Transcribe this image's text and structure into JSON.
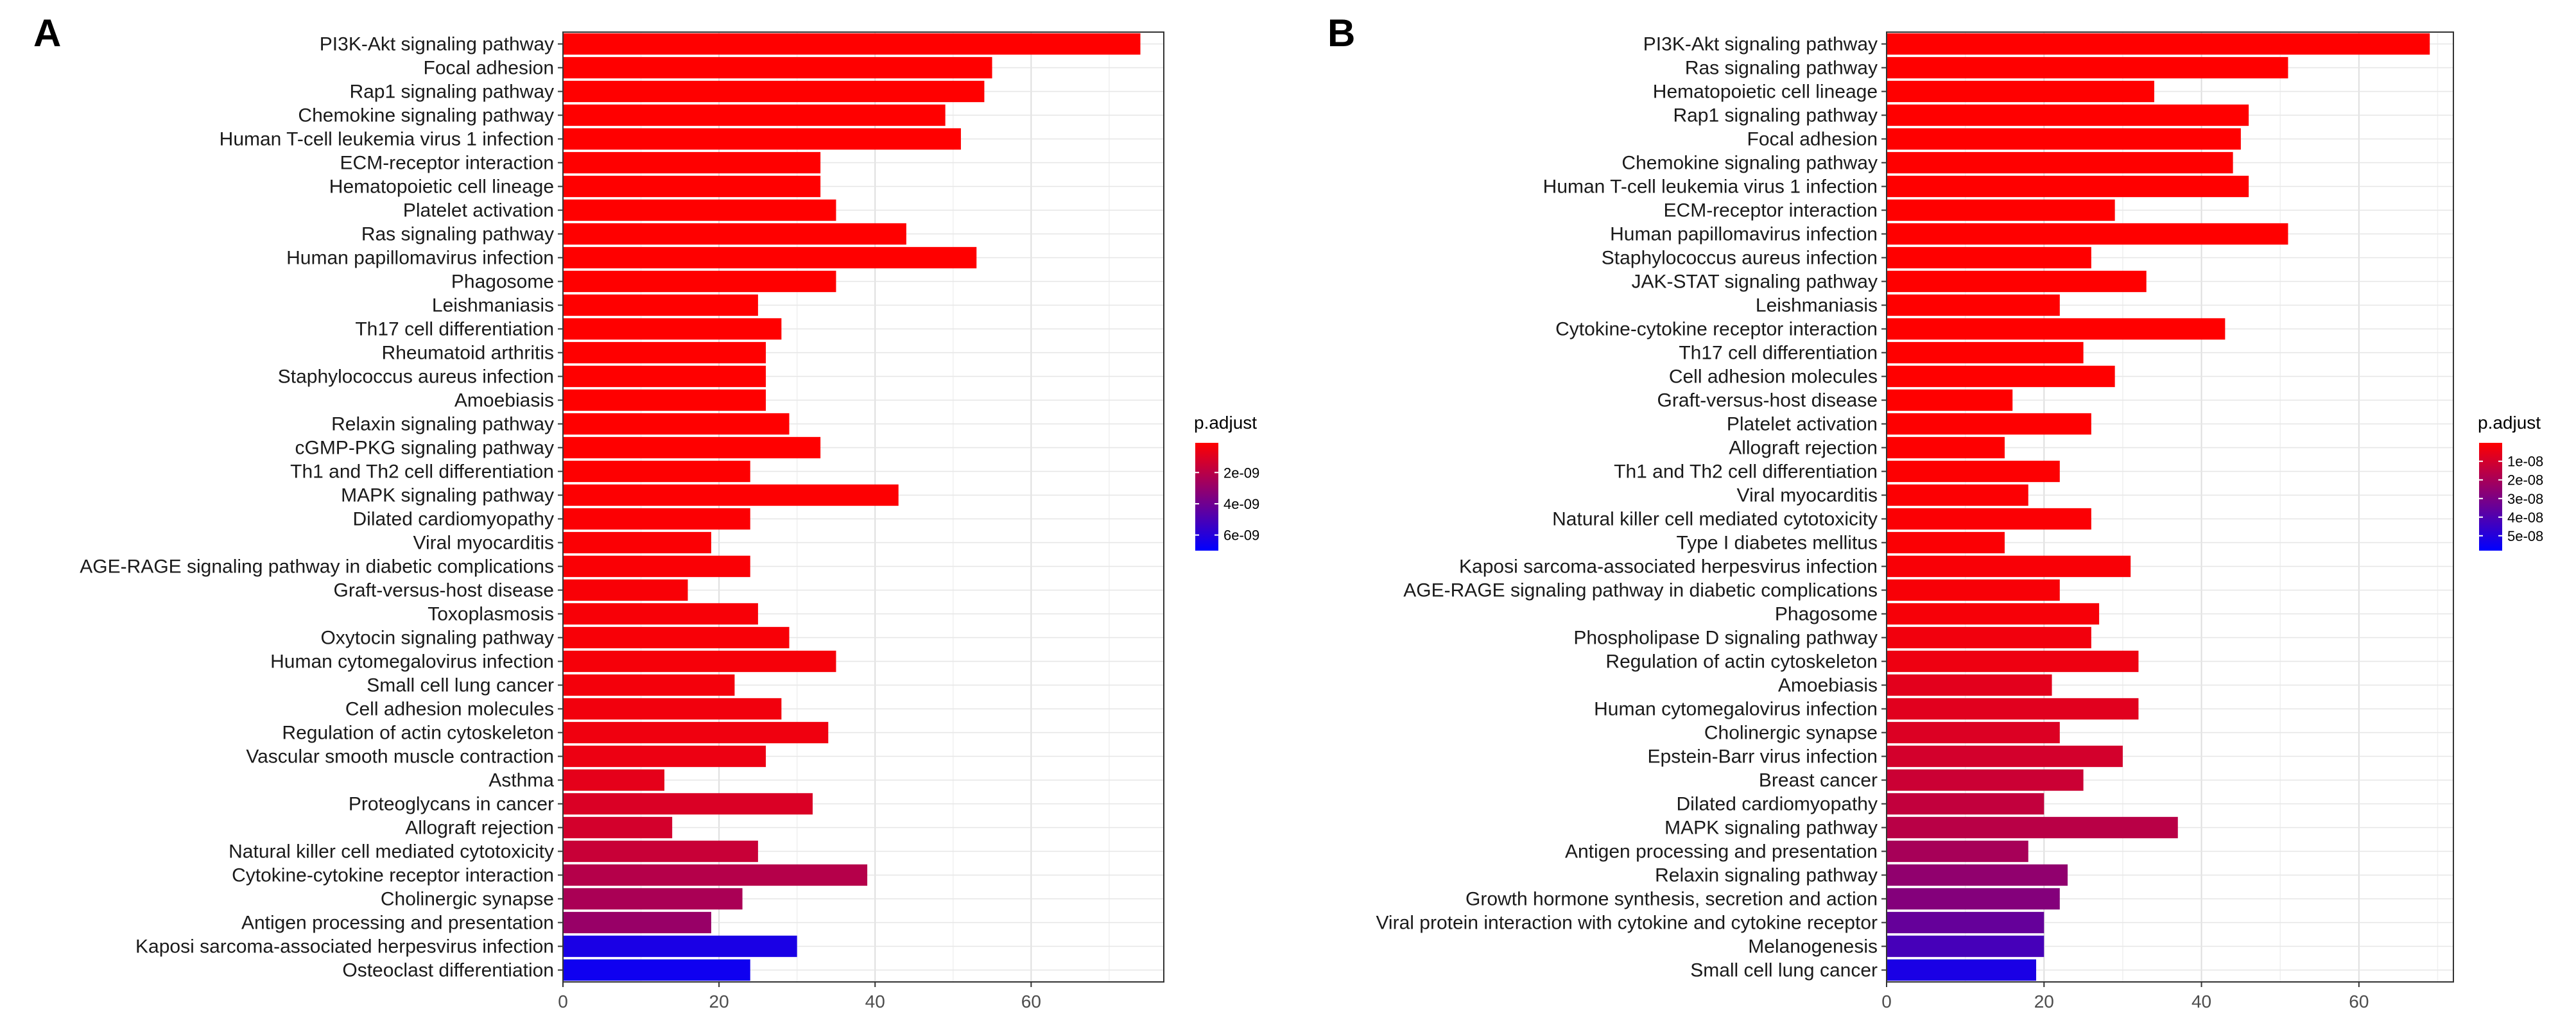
{
  "chart_data": [
    {
      "type": "bar",
      "panel_label": "A",
      "orientation": "horizontal",
      "xlim": [
        0,
        77
      ],
      "x_ticks": [
        "0",
        "20",
        "40",
        "60"
      ],
      "x_tick_values": [
        0,
        20,
        40,
        60
      ],
      "color_by": "p.adjust",
      "legend": {
        "title": "p.adjust",
        "position": "right",
        "ticks": [
          "2e-09",
          "4e-09",
          "6e-09"
        ],
        "tick_values": [
          2e-09,
          4e-09,
          6e-09
        ],
        "range": [
          1e-10,
          7e-09
        ],
        "low_color": "#ff0000",
        "high_color": "#0000ff"
      },
      "categories": [
        "PI3K-Akt signaling pathway",
        "Focal adhesion",
        "Rap1 signaling pathway",
        "Chemokine signaling pathway",
        "Human T-cell leukemia virus 1 infection",
        "ECM-receptor interaction",
        "Hematopoietic cell lineage",
        "Platelet activation",
        "Ras signaling pathway",
        "Human papillomavirus infection",
        "Phagosome",
        "Leishmaniasis",
        "Th17 cell differentiation",
        "Rheumatoid arthritis",
        "Staphylococcus aureus infection",
        "Amoebiasis",
        "Relaxin signaling pathway",
        "cGMP-PKG signaling pathway",
        "Th1 and Th2 cell differentiation",
        "MAPK signaling pathway",
        "Dilated cardiomyopathy",
        "Viral myocarditis",
        "AGE-RAGE signaling pathway in diabetic complications",
        "Graft-versus-host disease",
        "Toxoplasmosis",
        "Oxytocin signaling pathway",
        "Human cytomegalovirus infection",
        "Small cell lung cancer",
        "Cell adhesion molecules",
        "Regulation of actin cytoskeleton",
        "Vascular smooth muscle contraction",
        "Asthma",
        "Proteoglycans in cancer",
        "Allograft rejection",
        "Natural killer cell mediated cytotoxicity",
        "Cytokine-cytokine receptor interaction",
        "Cholinergic synapse",
        "Antigen processing and presentation",
        "Kaposi sarcoma-associated herpesvirus infection",
        "Osteoclast differentiation"
      ],
      "values": [
        74,
        55,
        54,
        49,
        51,
        33,
        33,
        35,
        44,
        53,
        35,
        25,
        28,
        26,
        26,
        26,
        29,
        33,
        24,
        43,
        24,
        19,
        24,
        16,
        25,
        29,
        35,
        22,
        28,
        34,
        26,
        13,
        32,
        14,
        25,
        39,
        23,
        19,
        30,
        24
      ],
      "p_adjust": [
        3e-14,
        1e-12,
        2e-12,
        3e-12,
        4e-12,
        5e-12,
        6e-12,
        8e-12,
        1e-11,
        1.2e-11,
        2e-11,
        3e-11,
        4e-11,
        5e-11,
        6e-11,
        7e-11,
        8e-11,
        1e-10,
        1.2e-10,
        1.5e-10,
        1.8e-10,
        2e-10,
        2.3e-10,
        2.5e-10,
        2.8e-10,
        3e-10,
        3.5e-10,
        4e-10,
        4.5e-10,
        5e-10,
        6e-10,
        8e-10,
        1.1e-09,
        1.3e-09,
        1.6e-09,
        2.1e-09,
        2.4e-09,
        2.9e-09,
        6.3e-09,
        6.6e-09
      ]
    },
    {
      "type": "bar",
      "panel_label": "B",
      "orientation": "horizontal",
      "xlim": [
        0,
        72
      ],
      "x_ticks": [
        "0",
        "20",
        "40",
        "60"
      ],
      "x_tick_values": [
        0,
        20,
        40,
        60
      ],
      "color_by": "p.adjust",
      "legend": {
        "title": "p.adjust",
        "position": "right",
        "ticks": [
          "1e-08",
          "2e-08",
          "3e-08",
          "4e-08",
          "5e-08"
        ],
        "tick_values": [
          1e-08,
          2e-08,
          3e-08,
          4e-08,
          5e-08
        ],
        "range": [
          1e-10,
          5.8e-08
        ],
        "low_color": "#ff0000",
        "high_color": "#0000ff"
      },
      "categories": [
        "PI3K-Akt signaling pathway",
        "Ras signaling pathway",
        "Hematopoietic cell lineage",
        "Rap1 signaling pathway",
        "Focal adhesion",
        "Chemokine signaling pathway",
        "Human T-cell leukemia virus 1 infection",
        "ECM-receptor interaction",
        "Human papillomavirus infection",
        "Staphylococcus aureus infection",
        "JAK-STAT signaling pathway",
        "Leishmaniasis",
        "Cytokine-cytokine receptor interaction",
        "Th17 cell differentiation",
        "Cell adhesion molecules",
        "Graft-versus-host disease",
        "Platelet activation",
        "Allograft rejection",
        "Th1 and Th2 cell differentiation",
        "Viral myocarditis",
        "Natural killer cell mediated cytotoxicity",
        "Type I diabetes mellitus",
        "Kaposi sarcoma-associated herpesvirus infection",
        "AGE-RAGE signaling pathway in diabetic complications",
        "Phagosome",
        "Phospholipase D signaling pathway",
        "Regulation of actin cytoskeleton",
        "Amoebiasis",
        "Human cytomegalovirus infection",
        "Cholinergic synapse",
        "Epstein-Barr virus infection",
        "Breast cancer",
        "Dilated cardiomyopathy",
        "MAPK signaling pathway",
        "Antigen processing and presentation",
        "Relaxin signaling pathway",
        "Growth hormone synthesis, secretion and action",
        "Viral protein interaction with cytokine and cytokine receptor",
        "Melanogenesis",
        "Small cell lung cancer"
      ],
      "values": [
        69,
        51,
        34,
        46,
        45,
        44,
        46,
        29,
        51,
        26,
        33,
        22,
        43,
        25,
        29,
        16,
        26,
        15,
        22,
        18,
        26,
        15,
        31,
        22,
        27,
        26,
        32,
        21,
        32,
        22,
        30,
        25,
        20,
        37,
        18,
        23,
        22,
        20,
        20,
        19
      ],
      "p_adjust": [
        1e-14,
        1e-13,
        3e-13,
        5e-13,
        8e-13,
        1e-12,
        2e-12,
        4e-12,
        6e-12,
        1e-11,
        2e-11,
        4e-11,
        6e-11,
        1e-10,
        1.5e-10,
        2e-10,
        3e-10,
        4e-10,
        5e-10,
        7e-10,
        9e-10,
        1.1e-09,
        1.4e-09,
        1.7e-09,
        2e-09,
        3e-09,
        4e-09,
        6.5e-09,
        7e-09,
        8e-09,
        1e-08,
        1.2e-08,
        1.4e-08,
        1.6e-08,
        2e-08,
        2.5e-08,
        2.8e-08,
        3.5e-08,
        4.2e-08,
        5.2e-08
      ]
    }
  ]
}
